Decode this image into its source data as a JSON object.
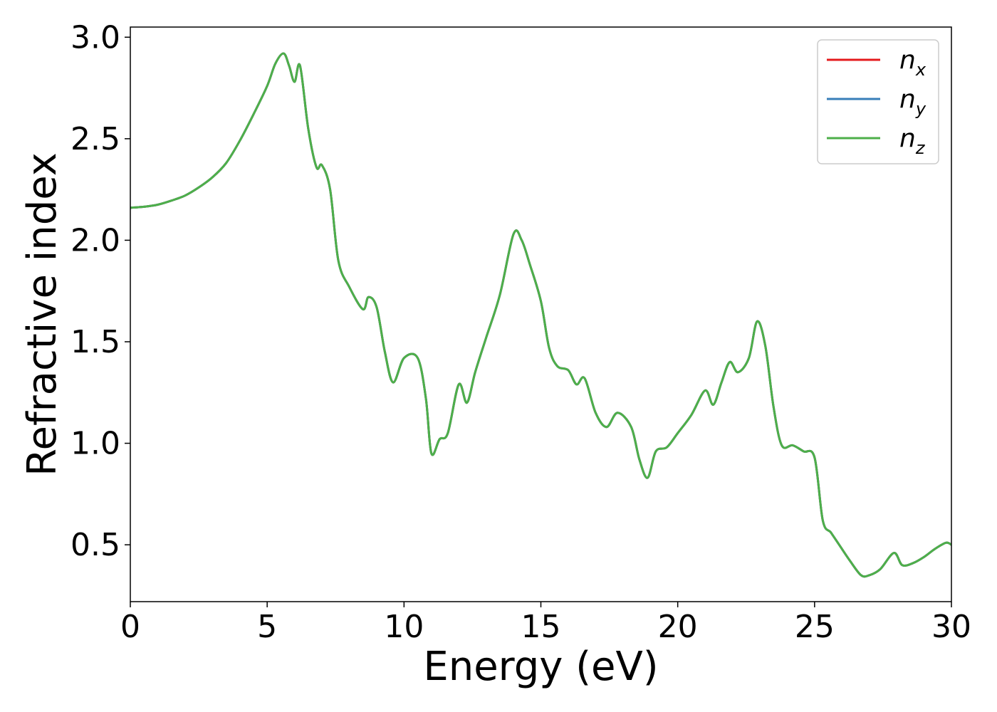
{
  "chart_data": {
    "type": "line",
    "title": "",
    "xlabel": "Energy (eV)",
    "ylabel": "Refractive index",
    "xlim": [
      0,
      30
    ],
    "ylim": [
      0.22,
      3.05
    ],
    "xticks": [
      0,
      5,
      10,
      15,
      20,
      25,
      30
    ],
    "xtick_labels": [
      "0",
      "5",
      "10",
      "15",
      "20",
      "25",
      "30"
    ],
    "yticks": [
      0.5,
      1.0,
      1.5,
      2.0,
      2.5,
      3.0
    ],
    "ytick_labels": [
      "0.5",
      "1.0",
      "1.5",
      "2.0",
      "2.5",
      "3.0"
    ],
    "grid": false,
    "legend_position": "top-right",
    "colors": {
      "nx": "#e41a1c",
      "ny": "#377eb8",
      "nz": "#4daf4a"
    },
    "series": [
      {
        "name": "n",
        "subscript": "x",
        "color_key": "nx",
        "x": [
          0,
          0.5,
          1,
          1.5,
          2,
          2.5,
          3,
          3.5,
          4,
          4.5,
          5,
          5.3,
          5.6,
          5.8,
          6.0,
          6.2,
          6.5,
          6.8,
          7.0,
          7.3,
          7.6,
          8.0,
          8.5,
          8.7,
          9.0,
          9.3,
          9.6,
          10.0,
          10.5,
          10.8,
          11.0,
          11.3,
          11.6,
          12.0,
          12.3,
          12.6,
          13.0,
          13.5,
          14.0,
          14.3,
          14.6,
          15.0,
          15.3,
          15.6,
          16.0,
          16.3,
          16.6,
          17.0,
          17.4,
          17.8,
          18.3,
          18.6,
          18.9,
          19.2,
          19.6,
          20.0,
          20.5,
          21.0,
          21.3,
          21.6,
          21.9,
          22.2,
          22.6,
          22.9,
          23.2,
          23.5,
          23.8,
          24.2,
          24.6,
          25.0,
          25.3,
          25.6,
          25.9,
          26.3,
          26.7,
          27.0,
          27.4,
          27.9,
          28.2,
          28.6,
          29.0,
          29.4,
          29.8,
          30
        ],
        "y": [
          2.16,
          2.165,
          2.175,
          2.195,
          2.22,
          2.26,
          2.31,
          2.38,
          2.49,
          2.62,
          2.76,
          2.87,
          2.92,
          2.86,
          2.78,
          2.86,
          2.55,
          2.36,
          2.37,
          2.25,
          1.9,
          1.77,
          1.66,
          1.72,
          1.67,
          1.45,
          1.3,
          1.42,
          1.42,
          1.22,
          0.95,
          1.02,
          1.05,
          1.29,
          1.2,
          1.35,
          1.52,
          1.73,
          2.03,
          2.0,
          1.88,
          1.7,
          1.47,
          1.38,
          1.36,
          1.29,
          1.32,
          1.15,
          1.08,
          1.15,
          1.08,
          0.92,
          0.83,
          0.96,
          0.98,
          1.05,
          1.14,
          1.26,
          1.19,
          1.3,
          1.4,
          1.35,
          1.42,
          1.6,
          1.48,
          1.18,
          0.99,
          0.99,
          0.96,
          0.93,
          0.62,
          0.56,
          0.5,
          0.42,
          0.35,
          0.35,
          0.38,
          0.46,
          0.4,
          0.41,
          0.44,
          0.48,
          0.51,
          0.5
        ]
      },
      {
        "name": "n",
        "subscript": "y",
        "color_key": "ny",
        "x": [
          0,
          0.5,
          1,
          1.5,
          2,
          2.5,
          3,
          3.5,
          4,
          4.5,
          5,
          5.3,
          5.6,
          5.8,
          6.0,
          6.2,
          6.5,
          6.8,
          7.0,
          7.3,
          7.6,
          8.0,
          8.5,
          8.7,
          9.0,
          9.3,
          9.6,
          10.0,
          10.5,
          10.8,
          11.0,
          11.3,
          11.6,
          12.0,
          12.3,
          12.6,
          13.0,
          13.5,
          14.0,
          14.3,
          14.6,
          15.0,
          15.3,
          15.6,
          16.0,
          16.3,
          16.6,
          17.0,
          17.4,
          17.8,
          18.3,
          18.6,
          18.9,
          19.2,
          19.6,
          20.0,
          20.5,
          21.0,
          21.3,
          21.6,
          21.9,
          22.2,
          22.6,
          22.9,
          23.2,
          23.5,
          23.8,
          24.2,
          24.6,
          25.0,
          25.3,
          25.6,
          25.9,
          26.3,
          26.7,
          27.0,
          27.4,
          27.9,
          28.2,
          28.6,
          29.0,
          29.4,
          29.8,
          30
        ],
        "y": [
          2.16,
          2.165,
          2.175,
          2.195,
          2.22,
          2.26,
          2.31,
          2.38,
          2.49,
          2.62,
          2.76,
          2.87,
          2.92,
          2.86,
          2.78,
          2.86,
          2.55,
          2.36,
          2.37,
          2.25,
          1.9,
          1.77,
          1.66,
          1.72,
          1.67,
          1.45,
          1.3,
          1.42,
          1.42,
          1.22,
          0.95,
          1.02,
          1.05,
          1.29,
          1.2,
          1.35,
          1.52,
          1.73,
          2.03,
          2.0,
          1.88,
          1.7,
          1.47,
          1.38,
          1.36,
          1.29,
          1.32,
          1.15,
          1.08,
          1.15,
          1.08,
          0.92,
          0.83,
          0.96,
          0.98,
          1.05,
          1.14,
          1.26,
          1.19,
          1.3,
          1.4,
          1.35,
          1.42,
          1.6,
          1.48,
          1.18,
          0.99,
          0.99,
          0.96,
          0.93,
          0.62,
          0.56,
          0.5,
          0.42,
          0.35,
          0.35,
          0.38,
          0.46,
          0.4,
          0.41,
          0.44,
          0.48,
          0.51,
          0.5
        ]
      },
      {
        "name": "n",
        "subscript": "z",
        "color_key": "nz",
        "x": [
          0,
          0.5,
          1,
          1.5,
          2,
          2.5,
          3,
          3.5,
          4,
          4.5,
          5,
          5.3,
          5.6,
          5.8,
          6.0,
          6.2,
          6.5,
          6.8,
          7.0,
          7.3,
          7.6,
          8.0,
          8.5,
          8.7,
          9.0,
          9.3,
          9.6,
          10.0,
          10.5,
          10.8,
          11.0,
          11.3,
          11.6,
          12.0,
          12.3,
          12.6,
          13.0,
          13.5,
          14.0,
          14.3,
          14.6,
          15.0,
          15.3,
          15.6,
          16.0,
          16.3,
          16.6,
          17.0,
          17.4,
          17.8,
          18.3,
          18.6,
          18.9,
          19.2,
          19.6,
          20.0,
          20.5,
          21.0,
          21.3,
          21.6,
          21.9,
          22.2,
          22.6,
          22.9,
          23.2,
          23.5,
          23.8,
          24.2,
          24.6,
          25.0,
          25.3,
          25.6,
          25.9,
          26.3,
          26.7,
          27.0,
          27.4,
          27.9,
          28.2,
          28.6,
          29.0,
          29.4,
          29.8,
          30
        ],
        "y": [
          2.16,
          2.165,
          2.175,
          2.195,
          2.22,
          2.26,
          2.31,
          2.38,
          2.49,
          2.62,
          2.76,
          2.87,
          2.92,
          2.86,
          2.78,
          2.86,
          2.55,
          2.36,
          2.37,
          2.25,
          1.9,
          1.77,
          1.66,
          1.72,
          1.67,
          1.45,
          1.3,
          1.42,
          1.42,
          1.22,
          0.95,
          1.02,
          1.05,
          1.29,
          1.2,
          1.35,
          1.52,
          1.73,
          2.03,
          2.0,
          1.88,
          1.7,
          1.47,
          1.38,
          1.36,
          1.29,
          1.32,
          1.15,
          1.08,
          1.15,
          1.08,
          0.92,
          0.83,
          0.96,
          0.98,
          1.05,
          1.14,
          1.26,
          1.19,
          1.3,
          1.4,
          1.35,
          1.42,
          1.6,
          1.48,
          1.18,
          0.99,
          0.99,
          0.96,
          0.93,
          0.62,
          0.56,
          0.5,
          0.42,
          0.35,
          0.35,
          0.38,
          0.46,
          0.4,
          0.41,
          0.44,
          0.48,
          0.51,
          0.5
        ]
      }
    ]
  }
}
